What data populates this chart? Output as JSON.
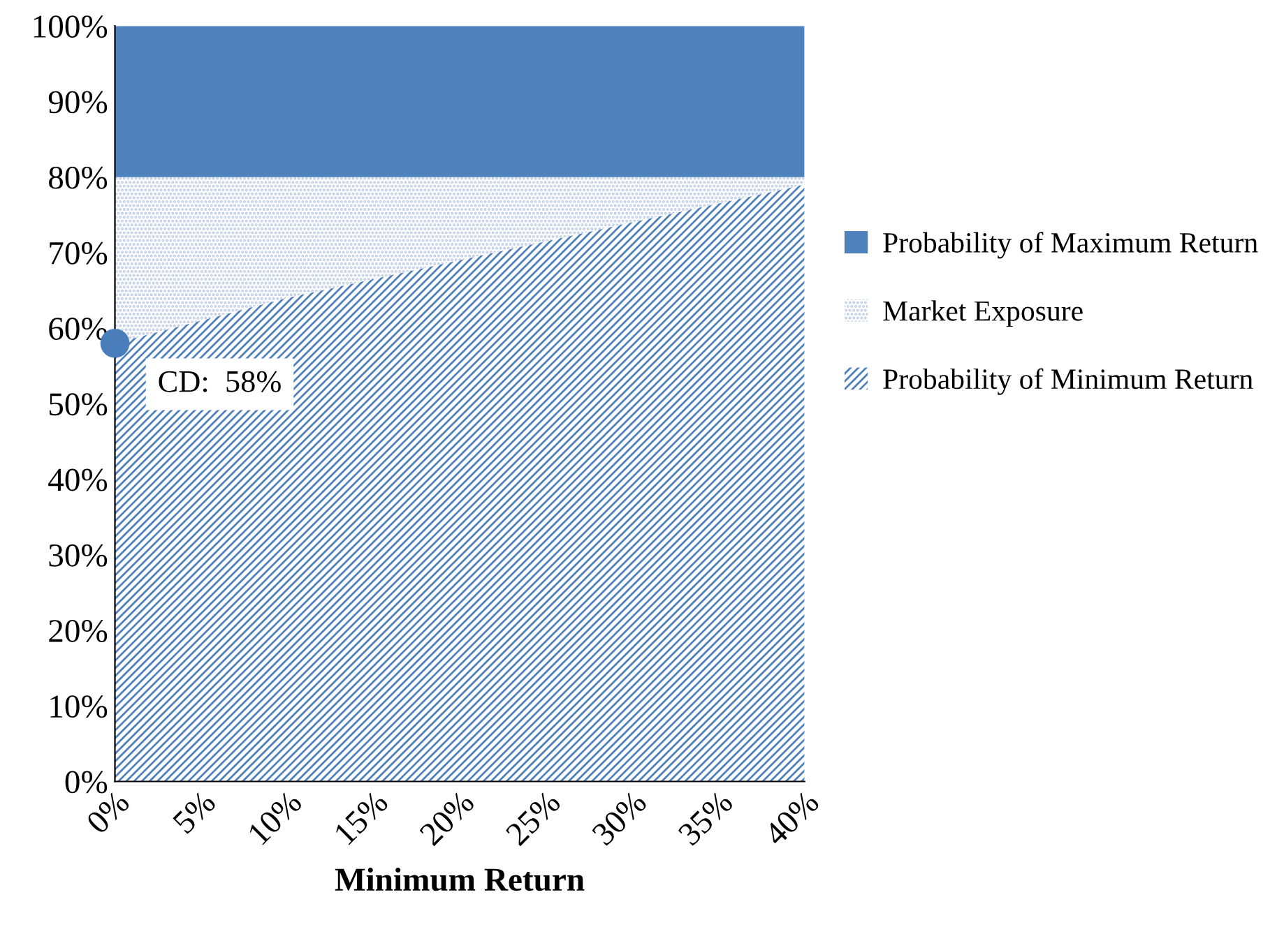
{
  "chart_data": {
    "type": "area",
    "stacked": true,
    "x": [
      0,
      5,
      10,
      15,
      20,
      25,
      30,
      35,
      40
    ],
    "series": [
      {
        "name": "Probability of Minimum Return",
        "color": "#4f81bd",
        "values": [
          58,
          61,
          64,
          66.5,
          69,
          71.5,
          74,
          76.5,
          79
        ]
      },
      {
        "name": "Market Exposure",
        "color": "#b9c9e3",
        "values": [
          22,
          19,
          16,
          13.5,
          11,
          8.5,
          6,
          3.5,
          1
        ]
      },
      {
        "name": "Probability of Maximum Return",
        "color": "#4f81bd",
        "values": [
          20,
          20,
          20,
          20,
          20,
          20,
          20,
          20,
          20
        ]
      },
      {
        "type": "scatter",
        "color": "#4a7ebb",
        "x": [
          0
        ],
        "values": [
          58
        ]
      }
    ],
    "annotations": [
      {
        "text": "CD:  58%",
        "x": 0,
        "y": 58
      }
    ],
    "xlabel": "Minimum Return",
    "xlim": [
      0,
      40
    ],
    "xticks": [
      {
        "value": 0,
        "label": "0%"
      },
      {
        "value": 5,
        "label": "5%"
      },
      {
        "value": 10,
        "label": "10%"
      },
      {
        "value": 15,
        "label": "15%"
      },
      {
        "value": 20,
        "label": "20%"
      },
      {
        "value": 25,
        "label": "25%"
      },
      {
        "value": 30,
        "label": "30%"
      },
      {
        "value": 35,
        "label": "35%"
      },
      {
        "value": 40,
        "label": "40%"
      }
    ],
    "ylim": [
      0,
      100
    ],
    "yticks": [
      {
        "value": 0,
        "label": "0%"
      },
      {
        "value": 10,
        "label": "10%"
      },
      {
        "value": 20,
        "label": "20%"
      },
      {
        "value": 30,
        "label": "30%"
      },
      {
        "value": 40,
        "label": "40%"
      },
      {
        "value": 50,
        "label": "50%"
      },
      {
        "value": 60,
        "label": "60%"
      },
      {
        "value": 70,
        "label": "70%"
      },
      {
        "value": 80,
        "label": "80%"
      },
      {
        "value": 90,
        "label": "90%"
      },
      {
        "value": 100,
        "label": "100%"
      }
    ],
    "grid": false,
    "legend": "right"
  }
}
